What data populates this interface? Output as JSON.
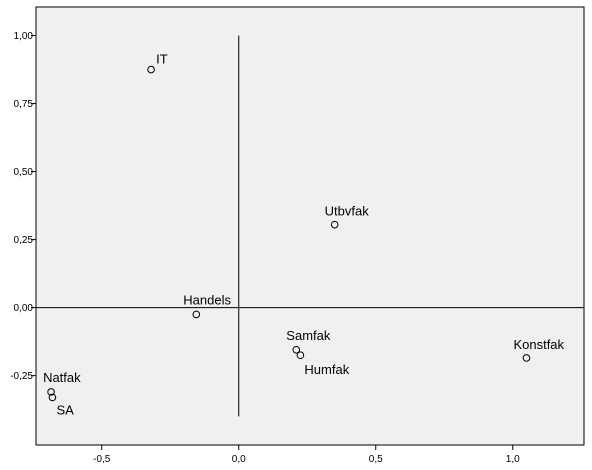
{
  "chart_data": {
    "type": "scatter",
    "title": "",
    "xlabel": "",
    "ylabel": "",
    "xlim": [
      -0.74,
      1.26
    ],
    "ylim": [
      -0.505,
      1.105
    ],
    "x_ticks": [
      -0.5,
      0.0,
      0.5,
      1.0
    ],
    "x_tick_labels": [
      "-0,5",
      "0,0",
      "0,5",
      "1,0"
    ],
    "y_ticks": [
      1.0,
      0.75,
      0.5,
      0.25,
      0.0,
      -0.25
    ],
    "y_tick_labels": [
      "1,00",
      "0,75",
      "0,50",
      "0,25",
      "0,00",
      "-0,25"
    ],
    "grid": false,
    "reference_lines": {
      "horizontal_y": 0.0,
      "vertical_x": 0.0,
      "vertical_y_range": [
        -0.4,
        1.0
      ]
    },
    "marker": "open-circle",
    "background_color": "#f0f0f0",
    "points": [
      {
        "label": "IT",
        "x": -0.32,
        "y": 0.875
      },
      {
        "label": "Utbvfak",
        "x": 0.35,
        "y": 0.305
      },
      {
        "label": "Handels",
        "x": -0.155,
        "y": -0.025
      },
      {
        "label": "Samfak",
        "x": 0.21,
        "y": -0.155
      },
      {
        "label": "Humfak",
        "x": 0.225,
        "y": -0.175
      },
      {
        "label": "Konstfak",
        "x": 1.05,
        "y": -0.185
      },
      {
        "label": "Natfak",
        "x": -0.685,
        "y": -0.31
      },
      {
        "label": "SA",
        "x": -0.68,
        "y": -0.33
      }
    ]
  }
}
